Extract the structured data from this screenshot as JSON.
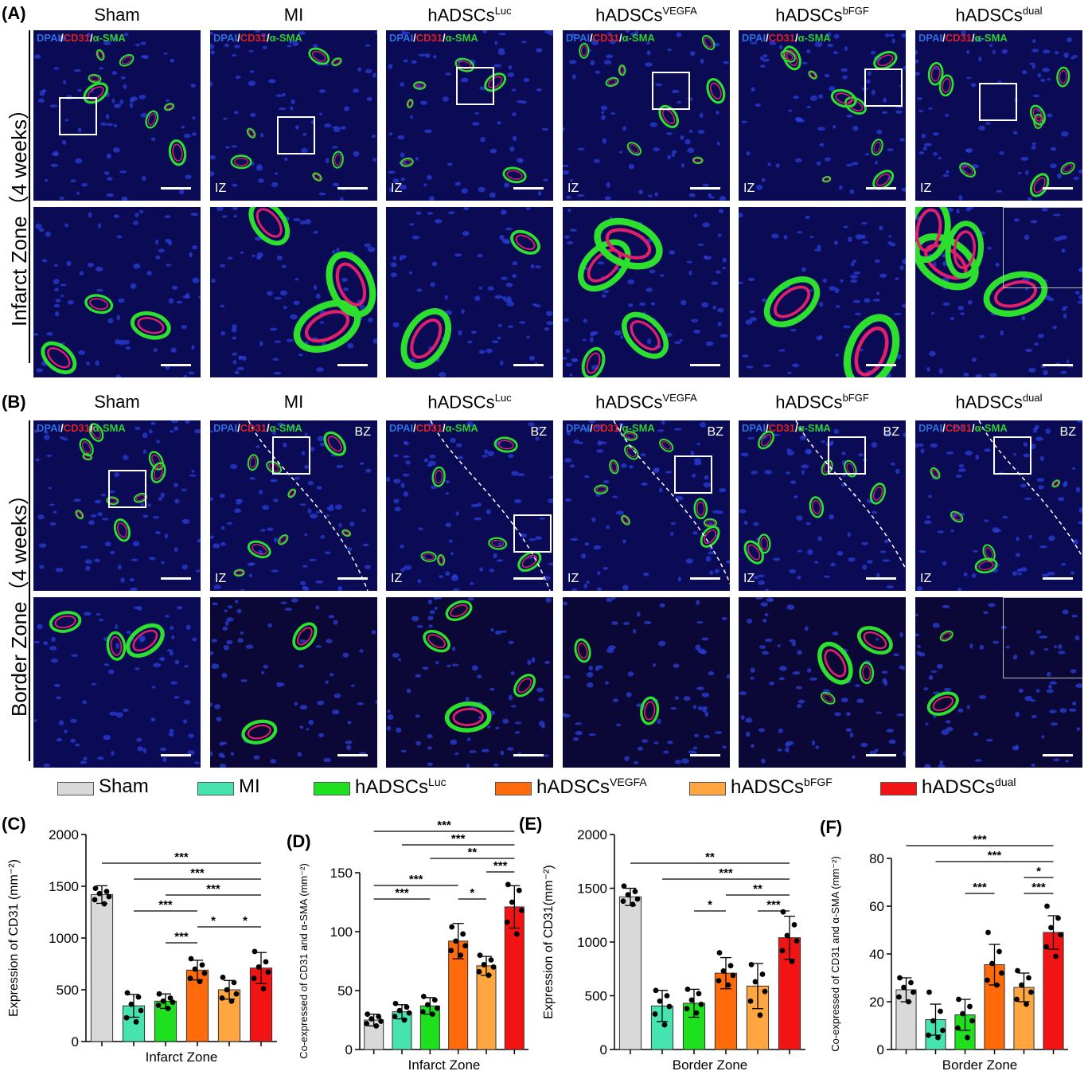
{
  "panels": {
    "a": "(A)",
    "b": "(B)",
    "c": "(C)",
    "d": "(D)",
    "e": "(E)",
    "f": "(F)"
  },
  "groups": [
    {
      "name": "Sham",
      "base": "Sham",
      "sup": "",
      "color": "#d9d9d9"
    },
    {
      "name": "MI",
      "base": "MI",
      "sup": "",
      "color": "#46e3b0"
    },
    {
      "name": "hADSCsLuc",
      "base": "hADSCs",
      "sup": "Luc",
      "color": "#1fe01f"
    },
    {
      "name": "hADSCsVEGFA",
      "base": "hADSCs",
      "sup": "VEGFA",
      "color": "#ff6a0a"
    },
    {
      "name": "hADSCsbFGF",
      "base": "hADSCs",
      "sup": "bFGF",
      "color": "#ffa640"
    },
    {
      "name": "hADSCsdual",
      "base": "hADSCs",
      "sup": "dual",
      "color": "#f21414"
    }
  ],
  "micrographs": {
    "stain": {
      "dapi": "DPAI",
      "sep": "/",
      "cd31": "CD31",
      "sma": "α-SMA"
    },
    "iz": "IZ",
    "bz": "BZ",
    "row_a": "Infarct Zone（4 weeks）",
    "row_b": "Border Zone（4 weeks）"
  },
  "chart_data": [
    {
      "panel": "(C)",
      "type": "bar",
      "categories": [
        "Sham",
        "MI",
        "hADSCsLuc",
        "hADSCsVEGFA",
        "hADSCsbFGF",
        "hADSCsdual"
      ],
      "values": [
        1420,
        345,
        390,
        690,
        500,
        710
      ],
      "errors": [
        85,
        110,
        70,
        95,
        90,
        150
      ],
      "points": [
        [
          1480,
          1450,
          1430,
          1400,
          1370,
          1330
        ],
        [
          470,
          430,
          360,
          300,
          230,
          190
        ],
        [
          460,
          420,
          390,
          380,
          350,
          320
        ],
        [
          800,
          740,
          700,
          660,
          610,
          580
        ],
        [
          620,
          570,
          500,
          460,
          420,
          390
        ],
        [
          870,
          770,
          720,
          670,
          610,
          510
        ]
      ],
      "xlabel": "Infarct Zone",
      "ylabel": "Expression of CD31 (mm⁻²)",
      "ylim": [
        0,
        2000
      ],
      "yticks": [
        0,
        500,
        1000,
        1500,
        2000
      ],
      "significance": [
        {
          "from": 0,
          "to": 5,
          "label": "***"
        },
        {
          "from": 1,
          "to": 5,
          "label": "***"
        },
        {
          "from": 2,
          "to": 5,
          "label": "***"
        },
        {
          "from": 1,
          "to": 3,
          "label": "***"
        },
        {
          "from": 3,
          "to": 4,
          "label": "*"
        },
        {
          "from": 4,
          "to": 5,
          "label": "*"
        },
        {
          "from": 2,
          "to": 3,
          "label": "***"
        }
      ]
    },
    {
      "panel": "(D)",
      "type": "bar",
      "categories": [
        "Sham",
        "MI",
        "hADSCsLuc",
        "hADSCsVEGFA",
        "hADSCsbFGF",
        "hADSCsdual"
      ],
      "values": [
        25,
        32,
        37,
        92,
        71,
        121
      ],
      "errors": [
        5,
        6,
        7,
        15,
        8,
        18
      ],
      "points": [
        [
          30,
          28,
          26,
          24,
          22,
          20
        ],
        [
          39,
          36,
          33,
          31,
          28,
          25
        ],
        [
          45,
          42,
          38,
          35,
          32,
          30
        ],
        [
          104,
          98,
          92,
          88,
          84,
          80
        ],
        [
          80,
          76,
          72,
          70,
          66,
          63
        ],
        [
          140,
          135,
          125,
          118,
          108,
          98
        ]
      ],
      "xlabel": "Infarct Zone",
      "ylabel": "Co-expressed of CD31 and α-SMA (mm⁻²)",
      "ylim": [
        0,
        150
      ],
      "yticks": [
        0,
        50,
        100,
        150
      ],
      "significance": [
        {
          "from": 0,
          "to": 5,
          "label": "***"
        },
        {
          "from": 1,
          "to": 5,
          "label": "***"
        },
        {
          "from": 2,
          "to": 5,
          "label": "**"
        },
        {
          "from": 4,
          "to": 5,
          "label": "***"
        },
        {
          "from": 0,
          "to": 3,
          "label": "***"
        },
        {
          "from": 3,
          "to": 4,
          "label": "*"
        },
        {
          "from": 0,
          "to": 2,
          "label": "***"
        }
      ]
    },
    {
      "panel": "(E)",
      "type": "bar",
      "categories": [
        "Sham",
        "MI",
        "hADSCsLuc",
        "hADSCsVEGFA",
        "hADSCsbFGF",
        "hADSCsdual"
      ],
      "values": [
        1420,
        405,
        430,
        710,
        590,
        1040
      ],
      "errors": [
        80,
        145,
        130,
        145,
        210,
        200
      ],
      "points": [
        [
          1520,
          1470,
          1440,
          1400,
          1380,
          1350
        ],
        [
          550,
          500,
          450,
          400,
          330,
          230
        ],
        [
          560,
          520,
          460,
          420,
          380,
          340
        ],
        [
          900,
          780,
          730,
          690,
          640,
          600
        ],
        [
          790,
          700,
          630,
          540,
          450,
          320
        ],
        [
          1280,
          1160,
          1060,
          1010,
          920,
          820
        ]
      ],
      "xlabel": "Border Zone",
      "ylabel": "Expression of CD31(mm⁻²)",
      "ylim": [
        0,
        2000
      ],
      "yticks": [
        0,
        500,
        1000,
        1500,
        2000
      ],
      "significance": [
        {
          "from": 0,
          "to": 5,
          "label": "**"
        },
        {
          "from": 1,
          "to": 5,
          "label": "***"
        },
        {
          "from": 3,
          "to": 5,
          "label": "**"
        },
        {
          "from": 2,
          "to": 3,
          "label": "*"
        },
        {
          "from": 4,
          "to": 5,
          "label": "***"
        }
      ]
    },
    {
      "panel": "(F)",
      "type": "bar",
      "categories": [
        "Sham",
        "MI",
        "hADSCsLuc",
        "hADSCsVEGFA",
        "hADSCsbFGF",
        "hADSCsdual"
      ],
      "values": [
        25,
        12.5,
        14.5,
        35.5,
        26,
        49
      ],
      "errors": [
        5,
        6.5,
        6.5,
        8.5,
        6,
        7
      ],
      "points": [
        [
          30,
          28,
          26,
          24,
          22,
          20
        ],
        [
          24,
          16,
          12,
          8,
          6,
          5
        ],
        [
          21,
          18,
          15,
          12,
          9,
          5
        ],
        [
          49,
          41,
          36,
          32,
          29,
          27
        ],
        [
          33,
          30,
          27,
          24,
          21,
          19
        ],
        [
          60,
          55,
          51,
          48,
          43,
          39
        ]
      ],
      "xlabel": "Border Zone",
      "ylabel": "Co-expressed of CD31 and α-SMA (mm⁻²)",
      "ylim": [
        0,
        80
      ],
      "yticks": [
        0,
        20,
        40,
        60,
        80
      ],
      "significance": [
        {
          "from": 0,
          "to": 5,
          "label": "***"
        },
        {
          "from": 1,
          "to": 5,
          "label": "***"
        },
        {
          "from": 4,
          "to": 5,
          "label": "*"
        },
        {
          "from": 2,
          "to": 3,
          "label": "***"
        },
        {
          "from": 4,
          "to": 5,
          "label": "***",
          "level": 0
        }
      ]
    }
  ]
}
